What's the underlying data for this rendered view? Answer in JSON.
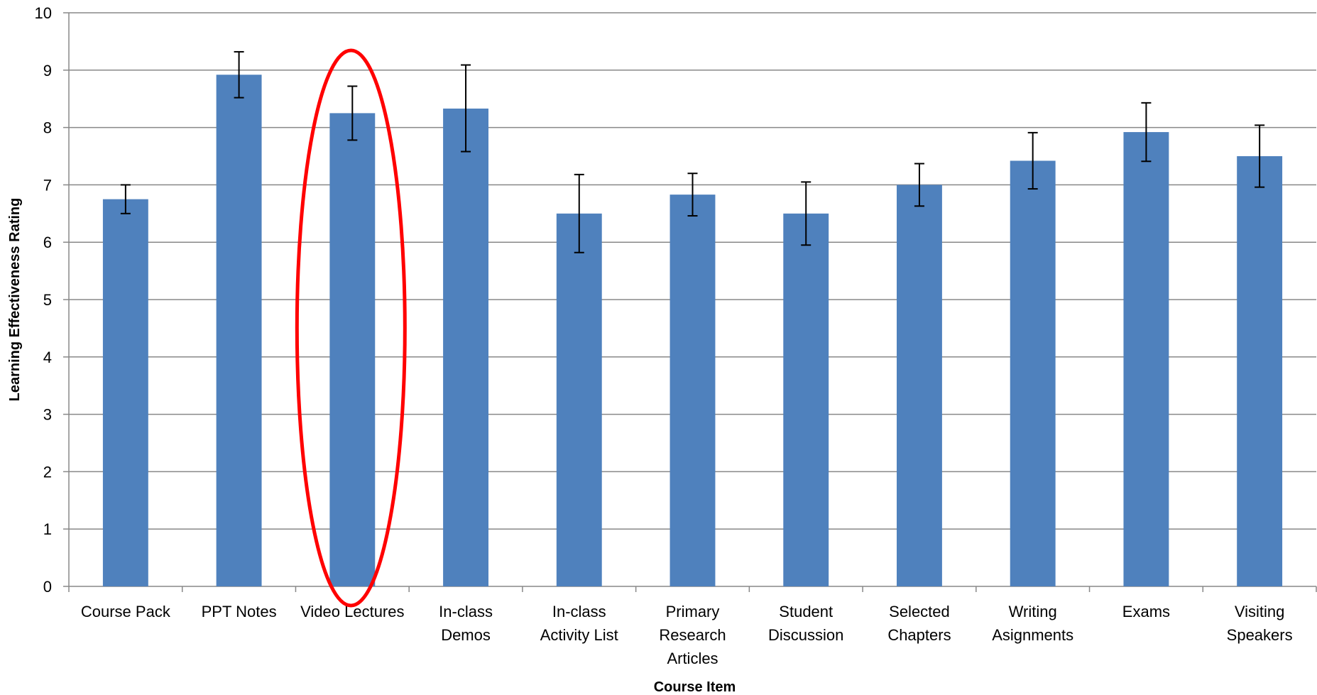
{
  "chart_data": {
    "type": "bar",
    "xlabel": "Course Item",
    "ylabel": "Learning Effectiveness Rating",
    "ylim": [
      0,
      10
    ],
    "yticks": [
      0,
      1,
      2,
      3,
      4,
      5,
      6,
      7,
      8,
      9,
      10
    ],
    "grid": true,
    "categories": [
      [
        "Course Pack"
      ],
      [
        "PPT Notes"
      ],
      [
        "Video Lectures"
      ],
      [
        "In-class",
        "Demos"
      ],
      [
        "In-class",
        "Activity List"
      ],
      [
        "Primary",
        "Research",
        "Articles"
      ],
      [
        "Student",
        "Discussion"
      ],
      [
        "Selected",
        "Chapters"
      ],
      [
        "Writing",
        "Asignments"
      ],
      [
        "Exams"
      ],
      [
        "Visiting",
        "Speakers"
      ]
    ],
    "values": [
      6.75,
      8.92,
      8.25,
      8.33,
      6.5,
      6.83,
      6.5,
      7.0,
      7.42,
      7.92,
      7.5
    ],
    "error_low": [
      6.5,
      8.52,
      7.78,
      7.58,
      5.82,
      6.46,
      5.95,
      6.63,
      6.93,
      7.41,
      6.96
    ],
    "error_high": [
      7.0,
      9.32,
      8.72,
      9.09,
      7.18,
      7.2,
      7.05,
      7.37,
      7.91,
      8.43,
      8.04
    ],
    "bar_color": "#4f81bd",
    "highlight": {
      "category_index": 2,
      "shape": "ellipse",
      "color": "#ff0000"
    }
  }
}
